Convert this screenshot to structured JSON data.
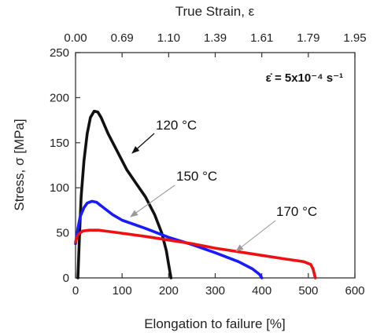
{
  "chart_data": {
    "type": "line",
    "xlabel": "Elongation to failure [%]",
    "ylabel": "Stress, σ  [MPa]",
    "x2label": "True Strain, ε",
    "xlim": [
      0,
      600
    ],
    "ylim": [
      0,
      250
    ],
    "xticks": [
      0,
      100,
      200,
      300,
      400,
      500,
      600
    ],
    "yticks": [
      0,
      50,
      100,
      150,
      200,
      250
    ],
    "top_ticks": [
      {
        "x": 0,
        "label": "0.00"
      },
      {
        "x": 100,
        "label": "0.69"
      },
      {
        "x": 200,
        "label": "1.10"
      },
      {
        "x": 300,
        "label": "1.39"
      },
      {
        "x": 400,
        "label": "1.61"
      },
      {
        "x": 500,
        "label": "1.79"
      },
      {
        "x": 600,
        "label": "1.95"
      }
    ],
    "rate_label": "ε̇ = 5x10⁻⁴ s⁻¹",
    "series": [
      {
        "color": "#111111",
        "points": [
          [
            5,
            0
          ],
          [
            8,
            40
          ],
          [
            12,
            90
          ],
          [
            18,
            130
          ],
          [
            25,
            160
          ],
          [
            32,
            178
          ],
          [
            40,
            185
          ],
          [
            48,
            184
          ],
          [
            55,
            178
          ],
          [
            70,
            160
          ],
          [
            90,
            140
          ],
          [
            110,
            120
          ],
          [
            130,
            105
          ],
          [
            150,
            90
          ],
          [
            170,
            70
          ],
          [
            185,
            50
          ],
          [
            195,
            30
          ],
          [
            200,
            15
          ],
          [
            205,
            0
          ]
        ]
      },
      {
        "color": "#1a1aff",
        "points": [
          [
            0,
            38
          ],
          [
            5,
            55
          ],
          [
            10,
            68
          ],
          [
            18,
            78
          ],
          [
            25,
            83
          ],
          [
            35,
            85
          ],
          [
            45,
            84
          ],
          [
            60,
            78
          ],
          [
            80,
            70
          ],
          [
            100,
            64
          ],
          [
            150,
            55
          ],
          [
            200,
            45
          ],
          [
            250,
            37
          ],
          [
            300,
            28
          ],
          [
            350,
            18
          ],
          [
            380,
            10
          ],
          [
            395,
            4
          ],
          [
            400,
            0
          ]
        ]
      },
      {
        "color": "#ee1111",
        "points": [
          [
            0,
            40
          ],
          [
            5,
            48
          ],
          [
            15,
            52
          ],
          [
            30,
            53
          ],
          [
            50,
            53
          ],
          [
            80,
            51
          ],
          [
            150,
            46
          ],
          [
            200,
            42
          ],
          [
            250,
            38
          ],
          [
            300,
            33
          ],
          [
            350,
            29
          ],
          [
            400,
            25
          ],
          [
            450,
            21
          ],
          [
            490,
            18
          ],
          [
            505,
            15
          ],
          [
            510,
            10
          ],
          [
            515,
            0
          ]
        ]
      }
    ],
    "annotations": [
      {
        "label": "120 °C"
      },
      {
        "label": "150 °C"
      },
      {
        "label": "170 °C"
      }
    ]
  }
}
